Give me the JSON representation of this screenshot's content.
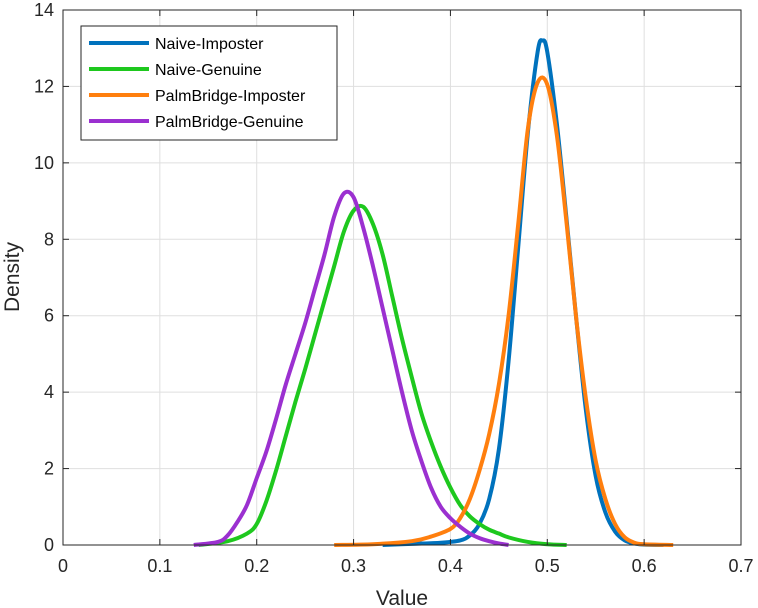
{
  "chart_data": {
    "type": "line",
    "title": "",
    "xlabel": "Value",
    "ylabel": "Density",
    "xlim": [
      0,
      0.7
    ],
    "ylim": [
      0,
      14
    ],
    "xticks": [
      0,
      0.1,
      0.2,
      0.3,
      0.4,
      0.5,
      0.6,
      0.7
    ],
    "xtick_labels": [
      "0",
      "0.1",
      "0.2",
      "0.3",
      "0.4",
      "0.5",
      "0.6",
      "0.7"
    ],
    "yticks": [
      0,
      2,
      4,
      6,
      8,
      10,
      12,
      14
    ],
    "ytick_labels": [
      "0",
      "2",
      "4",
      "6",
      "8",
      "10",
      "12",
      "14"
    ],
    "grid": true,
    "legend_position": "top-left",
    "series": [
      {
        "name": "Naive-Imposter",
        "color": "#0072BD",
        "x": [
          0.33,
          0.36,
          0.39,
          0.41,
          0.42,
          0.43,
          0.44,
          0.45,
          0.46,
          0.47,
          0.48,
          0.49,
          0.495,
          0.5,
          0.51,
          0.52,
          0.53,
          0.54,
          0.55,
          0.56,
          0.57,
          0.58,
          0.59,
          0.6,
          0.62
        ],
        "y": [
          0,
          0.03,
          0.06,
          0.12,
          0.25,
          0.55,
          1.2,
          2.5,
          4.8,
          7.8,
          10.8,
          12.9,
          13.2,
          12.9,
          11.0,
          8.5,
          5.9,
          3.5,
          1.8,
          0.85,
          0.35,
          0.12,
          0.04,
          0.01,
          0
        ]
      },
      {
        "name": "Naive-Genuine",
        "color": "#1EC81E",
        "x": [
          0.14,
          0.17,
          0.19,
          0.2,
          0.21,
          0.22,
          0.23,
          0.24,
          0.25,
          0.26,
          0.27,
          0.28,
          0.29,
          0.3,
          0.31,
          0.32,
          0.33,
          0.34,
          0.35,
          0.36,
          0.37,
          0.38,
          0.39,
          0.4,
          0.41,
          0.42,
          0.43,
          0.44,
          0.45,
          0.46,
          0.48,
          0.5,
          0.52
        ],
        "y": [
          0,
          0.1,
          0.3,
          0.55,
          1.15,
          1.95,
          2.85,
          3.75,
          4.6,
          5.5,
          6.4,
          7.3,
          8.2,
          8.75,
          8.85,
          8.4,
          7.6,
          6.5,
          5.4,
          4.4,
          3.45,
          2.7,
          2.05,
          1.5,
          1.05,
          0.75,
          0.55,
          0.4,
          0.3,
          0.2,
          0.08,
          0.02,
          0
        ]
      },
      {
        "name": "PalmBridge-Imposter",
        "color": "#FF7F0E",
        "x": [
          0.28,
          0.32,
          0.36,
          0.38,
          0.4,
          0.41,
          0.42,
          0.43,
          0.44,
          0.45,
          0.46,
          0.47,
          0.48,
          0.49,
          0.5,
          0.51,
          0.52,
          0.53,
          0.54,
          0.55,
          0.56,
          0.57,
          0.58,
          0.59,
          0.6,
          0.63
        ],
        "y": [
          0,
          0.02,
          0.1,
          0.22,
          0.42,
          0.7,
          1.2,
          1.95,
          2.9,
          4.2,
          6.0,
          8.4,
          10.9,
          12.1,
          12.05,
          10.7,
          8.4,
          5.9,
          3.8,
          2.2,
          1.2,
          0.55,
          0.2,
          0.06,
          0.02,
          0
        ]
      },
      {
        "name": "PalmBridge-Genuine",
        "color": "#9B30D0",
        "x": [
          0.135,
          0.16,
          0.17,
          0.18,
          0.19,
          0.2,
          0.21,
          0.22,
          0.23,
          0.24,
          0.25,
          0.26,
          0.27,
          0.28,
          0.29,
          0.3,
          0.31,
          0.32,
          0.33,
          0.34,
          0.35,
          0.36,
          0.37,
          0.38,
          0.39,
          0.4,
          0.41,
          0.42,
          0.43,
          0.44,
          0.45,
          0.46
        ],
        "y": [
          0,
          0.08,
          0.25,
          0.6,
          1.05,
          1.75,
          2.45,
          3.3,
          4.2,
          5.0,
          5.8,
          6.7,
          7.6,
          8.6,
          9.2,
          9.1,
          8.3,
          7.3,
          6.2,
          5.1,
          4.0,
          3.0,
          2.2,
          1.5,
          1.0,
          0.7,
          0.48,
          0.3,
          0.18,
          0.1,
          0.04,
          0
        ]
      }
    ]
  }
}
